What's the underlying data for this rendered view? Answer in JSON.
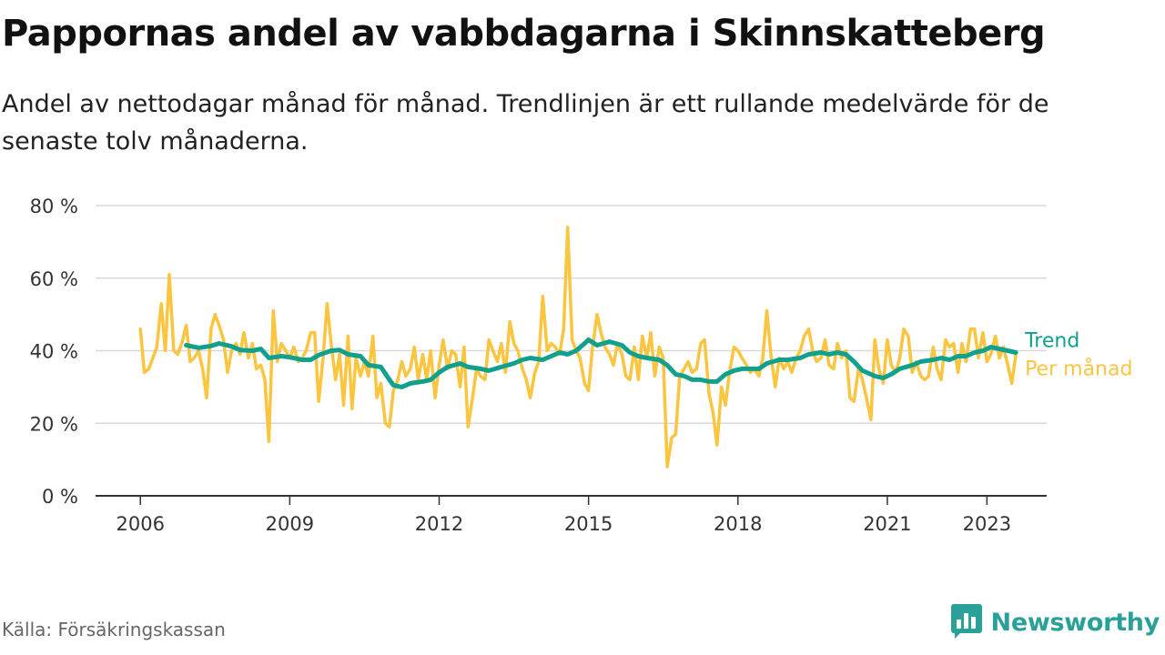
{
  "title": "Pappornas andel av vabbdagarna i Skinnskatteberg",
  "subtitle": "Andel av nettodagar månad för månad. Trendlinjen är ett rullande medelvärde för de senaste tolv månaderna.",
  "source": "Källa: Försäkringskassan",
  "brand": "Newsworthy",
  "colors": {
    "monthly": "#fcc540",
    "trend": "#12a08e",
    "brand": "#2aa198",
    "grid": "#d9d9d9",
    "axis": "#333333"
  },
  "icons": {
    "brand_logo": "bar-chart-speech-bubble-icon"
  },
  "chart_data": {
    "type": "line",
    "title": "Pappornas andel av vabbdagarna i Skinnskatteberg",
    "xlabel": "",
    "ylabel": "",
    "x_unit": "year",
    "x_ticks": [
      2006,
      2009,
      2012,
      2015,
      2018,
      2021,
      2023
    ],
    "x_tick_labels": [
      "2006",
      "2009",
      "2012",
      "2015",
      "2018",
      "2021",
      "2023"
    ],
    "xlim": [
      2005.1,
      2024.2
    ],
    "y_ticks": [
      0,
      20,
      40,
      60,
      80
    ],
    "y_tick_labels": [
      "0 %",
      "20 %",
      "40 %",
      "60 %",
      "80 %"
    ],
    "ylim": [
      0,
      80
    ],
    "grid": true,
    "legend": "inline-right",
    "series": [
      {
        "name": "Per månad",
        "color": "#fcc540",
        "points": [
          [
            2006.0,
            46
          ],
          [
            2006.08,
            34
          ],
          [
            2006.17,
            35
          ],
          [
            2006.25,
            38
          ],
          [
            2006.33,
            41
          ],
          [
            2006.42,
            53
          ],
          [
            2006.5,
            40
          ],
          [
            2006.58,
            61
          ],
          [
            2006.67,
            40
          ],
          [
            2006.75,
            39
          ],
          [
            2006.83,
            42
          ],
          [
            2006.92,
            47
          ],
          [
            2007.0,
            37
          ],
          [
            2007.08,
            38
          ],
          [
            2007.17,
            40
          ],
          [
            2007.25,
            35
          ],
          [
            2007.33,
            27
          ],
          [
            2007.42,
            46
          ],
          [
            2007.5,
            50
          ],
          [
            2007.58,
            47
          ],
          [
            2007.67,
            43
          ],
          [
            2007.75,
            34
          ],
          [
            2007.83,
            40
          ],
          [
            2007.92,
            42
          ],
          [
            2008.0,
            39
          ],
          [
            2008.08,
            45
          ],
          [
            2008.17,
            38
          ],
          [
            2008.25,
            42
          ],
          [
            2008.33,
            35
          ],
          [
            2008.42,
            36
          ],
          [
            2008.5,
            32
          ],
          [
            2008.58,
            15
          ],
          [
            2008.67,
            51
          ],
          [
            2008.75,
            37
          ],
          [
            2008.83,
            42
          ],
          [
            2008.92,
            40
          ],
          [
            2009.0,
            38
          ],
          [
            2009.08,
            41
          ],
          [
            2009.17,
            37
          ],
          [
            2009.25,
            38
          ],
          [
            2009.33,
            40
          ],
          [
            2009.42,
            45
          ],
          [
            2009.5,
            45
          ],
          [
            2009.58,
            26
          ],
          [
            2009.67,
            38
          ],
          [
            2009.75,
            53
          ],
          [
            2009.83,
            42
          ],
          [
            2009.92,
            32
          ],
          [
            2010.0,
            39
          ],
          [
            2010.08,
            25
          ],
          [
            2010.17,
            44
          ],
          [
            2010.25,
            24
          ],
          [
            2010.33,
            38
          ],
          [
            2010.42,
            33
          ],
          [
            2010.5,
            37
          ],
          [
            2010.58,
            33
          ],
          [
            2010.67,
            44
          ],
          [
            2010.75,
            27
          ],
          [
            2010.83,
            31
          ],
          [
            2010.92,
            20
          ],
          [
            2011.0,
            19
          ],
          [
            2011.08,
            29
          ],
          [
            2011.17,
            32
          ],
          [
            2011.25,
            37
          ],
          [
            2011.33,
            33
          ],
          [
            2011.42,
            35
          ],
          [
            2011.5,
            41
          ],
          [
            2011.58,
            32
          ],
          [
            2011.67,
            39
          ],
          [
            2011.75,
            32
          ],
          [
            2011.83,
            40
          ],
          [
            2011.92,
            27
          ],
          [
            2012.0,
            36
          ],
          [
            2012.08,
            43
          ],
          [
            2012.17,
            35
          ],
          [
            2012.25,
            40
          ],
          [
            2012.33,
            39
          ],
          [
            2012.42,
            30
          ],
          [
            2012.5,
            41
          ],
          [
            2012.58,
            19
          ],
          [
            2012.67,
            27
          ],
          [
            2012.75,
            35
          ],
          [
            2012.83,
            33
          ],
          [
            2012.92,
            32
          ],
          [
            2013.0,
            43
          ],
          [
            2013.08,
            40
          ],
          [
            2013.17,
            37
          ],
          [
            2013.25,
            42
          ],
          [
            2013.33,
            34
          ],
          [
            2013.42,
            48
          ],
          [
            2013.5,
            42
          ],
          [
            2013.58,
            40
          ],
          [
            2013.67,
            35
          ],
          [
            2013.75,
            32
          ],
          [
            2013.83,
            27
          ],
          [
            2013.92,
            34
          ],
          [
            2014.0,
            37
          ],
          [
            2014.08,
            55
          ],
          [
            2014.17,
            40
          ],
          [
            2014.25,
            42
          ],
          [
            2014.33,
            41
          ],
          [
            2014.42,
            39
          ],
          [
            2014.5,
            46
          ],
          [
            2014.58,
            74
          ],
          [
            2014.67,
            43
          ],
          [
            2014.75,
            40
          ],
          [
            2014.83,
            38
          ],
          [
            2014.92,
            31
          ],
          [
            2015.0,
            29
          ],
          [
            2015.08,
            41
          ],
          [
            2015.17,
            50
          ],
          [
            2015.25,
            45
          ],
          [
            2015.33,
            41
          ],
          [
            2015.42,
            39
          ],
          [
            2015.5,
            36
          ],
          [
            2015.58,
            42
          ],
          [
            2015.67,
            39
          ],
          [
            2015.75,
            33
          ],
          [
            2015.83,
            32
          ],
          [
            2015.92,
            41
          ],
          [
            2016.0,
            32
          ],
          [
            2016.08,
            44
          ],
          [
            2016.17,
            38
          ],
          [
            2016.25,
            45
          ],
          [
            2016.33,
            33
          ],
          [
            2016.42,
            41
          ],
          [
            2016.5,
            38
          ],
          [
            2016.58,
            8
          ],
          [
            2016.67,
            16
          ],
          [
            2016.75,
            17
          ],
          [
            2016.83,
            33
          ],
          [
            2016.92,
            35
          ],
          [
            2017.0,
            37
          ],
          [
            2017.08,
            34
          ],
          [
            2017.17,
            35
          ],
          [
            2017.25,
            42
          ],
          [
            2017.33,
            43
          ],
          [
            2017.42,
            28
          ],
          [
            2017.5,
            23
          ],
          [
            2017.58,
            14
          ],
          [
            2017.67,
            30
          ],
          [
            2017.75,
            25
          ],
          [
            2017.83,
            34
          ],
          [
            2017.92,
            41
          ],
          [
            2018.0,
            40
          ],
          [
            2018.08,
            38
          ],
          [
            2018.17,
            36
          ],
          [
            2018.25,
            34
          ],
          [
            2018.33,
            35
          ],
          [
            2018.42,
            33
          ],
          [
            2018.5,
            38
          ],
          [
            2018.58,
            51
          ],
          [
            2018.67,
            38
          ],
          [
            2018.75,
            30
          ],
          [
            2018.83,
            38
          ],
          [
            2018.92,
            35
          ],
          [
            2019.0,
            37
          ],
          [
            2019.08,
            34
          ],
          [
            2019.17,
            38
          ],
          [
            2019.25,
            40
          ],
          [
            2019.33,
            44
          ],
          [
            2019.42,
            46
          ],
          [
            2019.5,
            40
          ],
          [
            2019.58,
            37
          ],
          [
            2019.67,
            38
          ],
          [
            2019.75,
            43
          ],
          [
            2019.83,
            36
          ],
          [
            2019.92,
            35
          ],
          [
            2020.0,
            42
          ],
          [
            2020.08,
            38
          ],
          [
            2020.17,
            40
          ],
          [
            2020.25,
            27
          ],
          [
            2020.33,
            26
          ],
          [
            2020.42,
            35
          ],
          [
            2020.5,
            32
          ],
          [
            2020.58,
            27
          ],
          [
            2020.67,
            21
          ],
          [
            2020.75,
            43
          ],
          [
            2020.83,
            35
          ],
          [
            2020.92,
            31
          ],
          [
            2021.0,
            43
          ],
          [
            2021.08,
            36
          ],
          [
            2021.17,
            34
          ],
          [
            2021.25,
            38
          ],
          [
            2021.33,
            46
          ],
          [
            2021.42,
            44
          ],
          [
            2021.5,
            34
          ],
          [
            2021.58,
            37
          ],
          [
            2021.67,
            33
          ],
          [
            2021.75,
            32
          ],
          [
            2021.83,
            33
          ],
          [
            2021.92,
            41
          ],
          [
            2022.0,
            35
          ],
          [
            2022.08,
            32
          ],
          [
            2022.17,
            43
          ],
          [
            2022.25,
            41
          ],
          [
            2022.33,
            42
          ],
          [
            2022.42,
            34
          ],
          [
            2022.5,
            42
          ],
          [
            2022.58,
            37
          ],
          [
            2022.67,
            46
          ],
          [
            2022.75,
            46
          ],
          [
            2022.83,
            38
          ],
          [
            2022.92,
            45
          ],
          [
            2023.0,
            37
          ],
          [
            2023.08,
            39
          ],
          [
            2023.17,
            44
          ],
          [
            2023.25,
            38
          ],
          [
            2023.33,
            41
          ],
          [
            2023.42,
            36
          ],
          [
            2023.5,
            31
          ],
          [
            2023.58,
            39
          ]
        ]
      },
      {
        "name": "Trend",
        "color": "#12a08e",
        "points": [
          [
            2006.92,
            41.5
          ],
          [
            2007.17,
            40.8
          ],
          [
            2007.42,
            41.3
          ],
          [
            2007.58,
            42
          ],
          [
            2007.83,
            41.2
          ],
          [
            2008.0,
            40.2
          ],
          [
            2008.25,
            40
          ],
          [
            2008.42,
            40.5
          ],
          [
            2008.58,
            38
          ],
          [
            2008.83,
            38.5
          ],
          [
            2009.0,
            38.2
          ],
          [
            2009.25,
            37.5
          ],
          [
            2009.42,
            37.5
          ],
          [
            2009.58,
            38.8
          ],
          [
            2009.83,
            40
          ],
          [
            2010.0,
            40.2
          ],
          [
            2010.17,
            39
          ],
          [
            2010.42,
            38.5
          ],
          [
            2010.58,
            36
          ],
          [
            2010.83,
            35.5
          ],
          [
            2011.0,
            32
          ],
          [
            2011.08,
            30.5
          ],
          [
            2011.25,
            30
          ],
          [
            2011.42,
            31
          ],
          [
            2011.67,
            31.5
          ],
          [
            2011.83,
            32
          ],
          [
            2012.0,
            34
          ],
          [
            2012.17,
            35.5
          ],
          [
            2012.42,
            36.5
          ],
          [
            2012.58,
            35.5
          ],
          [
            2012.83,
            35
          ],
          [
            2013.0,
            34.5
          ],
          [
            2013.25,
            35.5
          ],
          [
            2013.5,
            36.5
          ],
          [
            2013.67,
            37.5
          ],
          [
            2013.83,
            38
          ],
          [
            2014.08,
            37.5
          ],
          [
            2014.25,
            38.5
          ],
          [
            2014.42,
            39.5
          ],
          [
            2014.58,
            39
          ],
          [
            2014.75,
            40
          ],
          [
            2014.92,
            42
          ],
          [
            2015.0,
            43
          ],
          [
            2015.17,
            41.5
          ],
          [
            2015.42,
            42.5
          ],
          [
            2015.67,
            41.5
          ],
          [
            2015.83,
            39.5
          ],
          [
            2016.0,
            38.5
          ],
          [
            2016.17,
            38
          ],
          [
            2016.42,
            37.5
          ],
          [
            2016.58,
            36
          ],
          [
            2016.75,
            33.5
          ],
          [
            2016.92,
            33
          ],
          [
            2017.08,
            32
          ],
          [
            2017.25,
            32
          ],
          [
            2017.42,
            31.5
          ],
          [
            2017.58,
            31.5
          ],
          [
            2017.75,
            33.5
          ],
          [
            2017.92,
            34.5
          ],
          [
            2018.08,
            35
          ],
          [
            2018.25,
            35
          ],
          [
            2018.42,
            35
          ],
          [
            2018.58,
            36.5
          ],
          [
            2018.83,
            37.5
          ],
          [
            2019.0,
            37.5
          ],
          [
            2019.25,
            38
          ],
          [
            2019.42,
            39
          ],
          [
            2019.67,
            39.5
          ],
          [
            2019.83,
            39
          ],
          [
            2020.0,
            39.5
          ],
          [
            2020.17,
            39
          ],
          [
            2020.33,
            37
          ],
          [
            2020.5,
            34.5
          ],
          [
            2020.75,
            33
          ],
          [
            2020.92,
            32.5
          ],
          [
            2021.08,
            33.5
          ],
          [
            2021.25,
            35
          ],
          [
            2021.5,
            36
          ],
          [
            2021.67,
            37
          ],
          [
            2021.92,
            37.5
          ],
          [
            2022.08,
            38
          ],
          [
            2022.25,
            37.5
          ],
          [
            2022.42,
            38.5
          ],
          [
            2022.58,
            38.5
          ],
          [
            2022.75,
            39.5
          ],
          [
            2022.92,
            40
          ],
          [
            2023.08,
            41
          ],
          [
            2023.25,
            40.5
          ],
          [
            2023.42,
            40
          ],
          [
            2023.58,
            39.5
          ]
        ]
      }
    ]
  }
}
